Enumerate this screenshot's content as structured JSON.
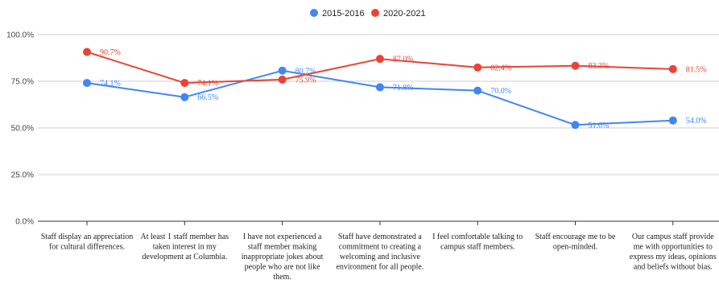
{
  "chart_data": {
    "type": "line",
    "title": "",
    "xlabel": "",
    "ylabel": "",
    "ylim": [
      0,
      100
    ],
    "yticks": [
      "0.0%",
      "25.0%",
      "50.0%",
      "75.0%",
      "100.0%"
    ],
    "categories": [
      "Staff display an appreciation for cultural differences.",
      "At least 1 staff member has taken interest in my development at Columbia.",
      "I have not experienced a staff member making inappropriate jokes about people who are not like them.",
      "Staff have demonstrated a commitment to creating a welcoming and inclusive environment for all people.",
      "I feel comfortable talking to campus staff members.",
      "Staff encourage me to be open-minded.",
      "Our campus staff provide me with opportunities to express my ideas, opinions and beliefs without bias."
    ],
    "category_lines": [
      [
        "Staff display an appreciation",
        "for cultural differences."
      ],
      [
        "At least 1 staff member has",
        "taken interest in my",
        "development at Columbia."
      ],
      [
        "I have not experienced a",
        "staff member making",
        "inappropriate jokes about",
        "people who are not like",
        "them."
      ],
      [
        "Staff have demonstrated a",
        "commitment to creating a",
        "welcoming and inclusive",
        "environment for all people."
      ],
      [
        "I feel comfortable talking to",
        "campus staff members."
      ],
      [
        "Staff encourage me to be",
        "open-minded."
      ],
      [
        "Our campus staff provide",
        "me with opportunities to",
        "express my ideas, opinions",
        "and beliefs without bias."
      ]
    ],
    "series": [
      {
        "name": "2015-2016",
        "color": "#4285f4",
        "values": [
          74.1,
          66.5,
          80.7,
          71.8,
          70.0,
          51.6,
          54.0
        ],
        "labels": [
          "74.1%",
          "66.5%",
          "80.7%",
          "71.8%",
          "70.0%",
          "51.6%",
          "54.0%"
        ]
      },
      {
        "name": "2020-2021",
        "color": "#ea4335",
        "values": [
          90.7,
          74.1,
          75.9,
          87.0,
          82.4,
          83.3,
          81.5
        ],
        "labels": [
          "90.7%",
          "74.1%",
          "75.9%",
          "87.0%",
          "82.4%",
          "83.3%",
          "81.5%"
        ]
      }
    ],
    "grid": true,
    "legend_position": "top-center"
  }
}
